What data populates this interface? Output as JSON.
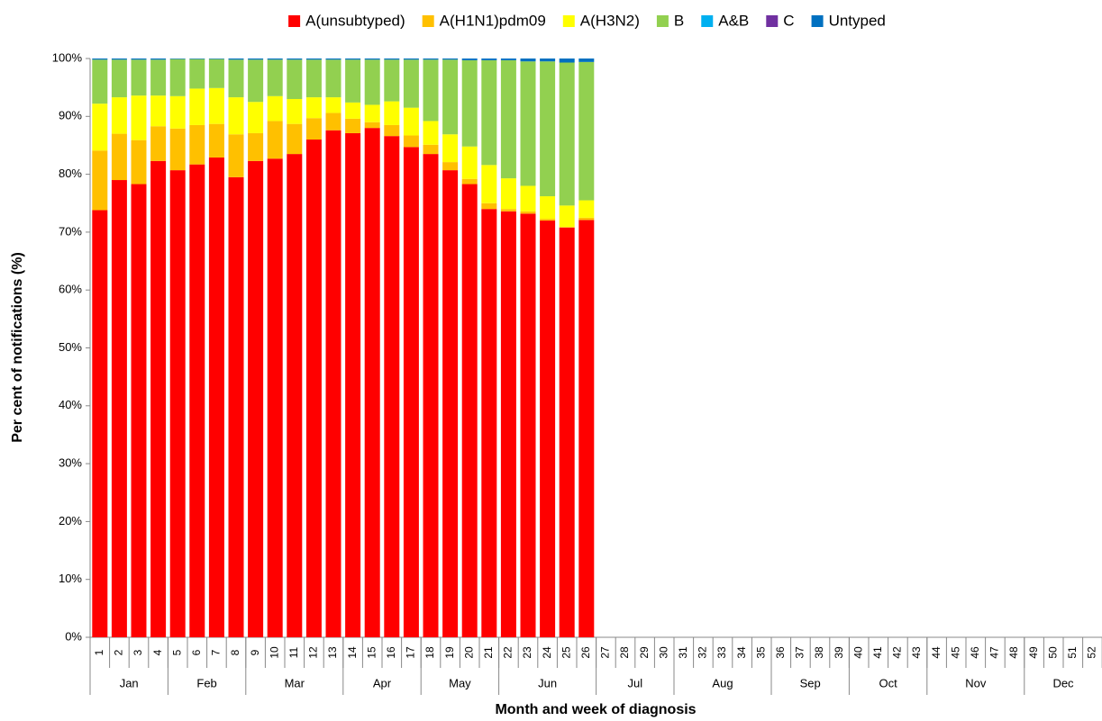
{
  "chart_data": {
    "type": "stacked_bar",
    "x_label": "Month and week of diagnosis",
    "y_label": "Per cent of notifications (%)",
    "categories": [
      "1",
      "2",
      "3",
      "4",
      "5",
      "6",
      "7",
      "8",
      "9",
      "10",
      "11",
      "12",
      "13",
      "14",
      "15",
      "16",
      "17",
      "18",
      "19",
      "20",
      "21",
      "22",
      "23",
      "24",
      "25",
      "26",
      "27",
      "28",
      "29",
      "30",
      "31",
      "32",
      "33",
      "34",
      "35",
      "36",
      "37",
      "38",
      "39",
      "40",
      "41",
      "42",
      "43",
      "44",
      "45",
      "46",
      "47",
      "48",
      "49",
      "50",
      "51",
      "52"
    ],
    "month_groups": [
      {
        "label": "Jan",
        "start": 1,
        "end": 4
      },
      {
        "label": "Feb",
        "start": 5,
        "end": 8
      },
      {
        "label": "Mar",
        "start": 9,
        "end": 13
      },
      {
        "label": "Apr",
        "start": 14,
        "end": 17
      },
      {
        "label": "May",
        "start": 18,
        "end": 21
      },
      {
        "label": "Jun",
        "start": 22,
        "end": 26
      },
      {
        "label": "Jul",
        "start": 27,
        "end": 30
      },
      {
        "label": "Aug",
        "start": 31,
        "end": 35
      },
      {
        "label": "Sep",
        "start": 36,
        "end": 39
      },
      {
        "label": "Oct",
        "start": 40,
        "end": 43
      },
      {
        "label": "Nov",
        "start": 44,
        "end": 48
      },
      {
        "label": "Dec",
        "start": 49,
        "end": 52
      }
    ],
    "ylim": [
      0,
      100
    ],
    "yticks": [
      {
        "value": 0,
        "label": "0%"
      },
      {
        "value": 10,
        "label": "10%"
      },
      {
        "value": 20,
        "label": "20%"
      },
      {
        "value": 30,
        "label": "30%"
      },
      {
        "value": 40,
        "label": "40%"
      },
      {
        "value": 50,
        "label": "50%"
      },
      {
        "value": 60,
        "label": "60%"
      },
      {
        "value": 70,
        "label": "70%"
      },
      {
        "value": 80,
        "label": "80%"
      },
      {
        "value": 90,
        "label": "90%"
      },
      {
        "value": 100,
        "label": "100%"
      }
    ],
    "grid": false,
    "series": [
      {
        "name": "A(unsubtyped)",
        "color": "#ff0000",
        "values": [
          73.8,
          79.0,
          78.3,
          82.3,
          80.7,
          81.7,
          82.9,
          79.5,
          82.3,
          82.7,
          83.5,
          86.0,
          87.6,
          87.1,
          88.0,
          86.6,
          84.7,
          83.5,
          80.7,
          78.3,
          74.0,
          73.6,
          73.2,
          72.0,
          70.8,
          72.1,
          null,
          null,
          null,
          null,
          null,
          null,
          null,
          null,
          null,
          null,
          null,
          null,
          null,
          null,
          null,
          null,
          null,
          null,
          null,
          null,
          null,
          null,
          null,
          null,
          null,
          null
        ]
      },
      {
        "name": "A(H1N1)pdm09",
        "color": "#ffc000",
        "values": [
          10.3,
          8.0,
          7.6,
          6.0,
          7.2,
          6.8,
          5.8,
          7.4,
          4.8,
          6.5,
          5.2,
          3.7,
          3.0,
          2.5,
          1.0,
          1.9,
          2.0,
          1.6,
          1.4,
          0.9,
          1.0,
          0.4,
          0.4,
          0.3,
          0.1,
          0.4,
          null,
          null,
          null,
          null,
          null,
          null,
          null,
          null,
          null,
          null,
          null,
          null,
          null,
          null,
          null,
          null,
          null,
          null,
          null,
          null,
          null,
          null,
          null,
          null,
          null,
          null
        ]
      },
      {
        "name": "A(H3N2)",
        "color": "#ffff00",
        "values": [
          8.1,
          6.3,
          7.7,
          5.3,
          5.6,
          6.3,
          6.2,
          6.4,
          5.4,
          4.3,
          4.3,
          3.6,
          2.7,
          2.8,
          3.0,
          4.1,
          4.8,
          4.1,
          4.8,
          5.6,
          6.6,
          5.3,
          4.4,
          3.9,
          3.7,
          3.0,
          null,
          null,
          null,
          null,
          null,
          null,
          null,
          null,
          null,
          null,
          null,
          null,
          null,
          null,
          null,
          null,
          null,
          null,
          null,
          null,
          null,
          null,
          null,
          null,
          null,
          null
        ]
      },
      {
        "name": "B",
        "color": "#92d050",
        "values": [
          7.6,
          6.5,
          6.2,
          6.2,
          6.4,
          5.1,
          5.0,
          6.5,
          7.3,
          6.3,
          6.8,
          6.5,
          6.5,
          7.4,
          7.8,
          7.2,
          8.3,
          10.6,
          12.9,
          14.9,
          18.1,
          20.4,
          21.5,
          23.3,
          24.7,
          23.9,
          null,
          null,
          null,
          null,
          null,
          null,
          null,
          null,
          null,
          null,
          null,
          null,
          null,
          null,
          null,
          null,
          null,
          null,
          null,
          null,
          null,
          null,
          null,
          null,
          null,
          null
        ]
      },
      {
        "name": "A&B",
        "color": "#00b0f0",
        "values": [
          0,
          0,
          0,
          0,
          0,
          0,
          0,
          0,
          0,
          0,
          0,
          0,
          0,
          0,
          0,
          0,
          0,
          0,
          0,
          0,
          0,
          0,
          0,
          0,
          0,
          0,
          null,
          null,
          null,
          null,
          null,
          null,
          null,
          null,
          null,
          null,
          null,
          null,
          null,
          null,
          null,
          null,
          null,
          null,
          null,
          null,
          null,
          null,
          null,
          null,
          null,
          null
        ]
      },
      {
        "name": "C",
        "color": "#7030a0",
        "values": [
          0,
          0,
          0,
          0,
          0,
          0,
          0,
          0,
          0,
          0,
          0,
          0,
          0,
          0,
          0,
          0,
          0,
          0,
          0,
          0,
          0,
          0,
          0,
          0,
          0,
          0,
          null,
          null,
          null,
          null,
          null,
          null,
          null,
          null,
          null,
          null,
          null,
          null,
          null,
          null,
          null,
          null,
          null,
          null,
          null,
          null,
          null,
          null,
          null,
          null,
          null,
          null
        ]
      },
      {
        "name": "Untyped",
        "color": "#0070c0",
        "values": [
          0.2,
          0.2,
          0.2,
          0.2,
          0.1,
          0.1,
          0.1,
          0.2,
          0.2,
          0.2,
          0.2,
          0.2,
          0.2,
          0.2,
          0.2,
          0.2,
          0.2,
          0.2,
          0.2,
          0.3,
          0.3,
          0.3,
          0.5,
          0.5,
          0.7,
          0.6,
          null,
          null,
          null,
          null,
          null,
          null,
          null,
          null,
          null,
          null,
          null,
          null,
          null,
          null,
          null,
          null,
          null,
          null,
          null,
          null,
          null,
          null,
          null,
          null,
          null,
          null
        ]
      }
    ]
  }
}
